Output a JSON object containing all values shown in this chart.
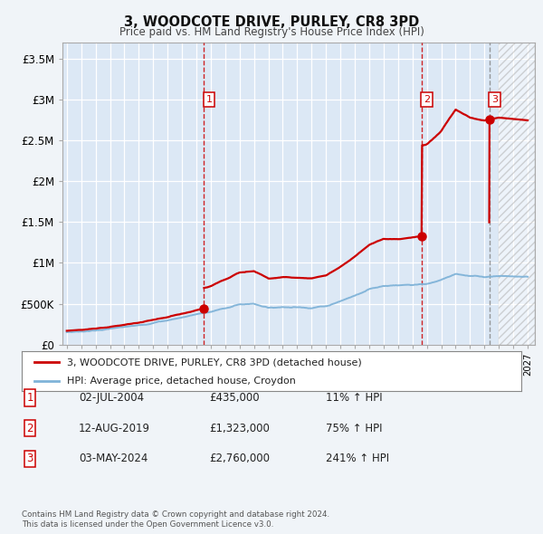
{
  "title": "3, WOODCOTE DRIVE, PURLEY, CR8 3PD",
  "subtitle": "Price paid vs. HM Land Registry's House Price Index (HPI)",
  "background_color": "#f0f4f8",
  "plot_bg_color": "#dce8f5",
  "grid_color": "#ffffff",
  "hpi_line_color": "#7fb3d8",
  "price_line_color": "#cc0000",
  "vline_color": "#cc0000",
  "vline3_color": "#888888",
  "yticks": [
    0,
    500000,
    1000000,
    1500000,
    2000000,
    2500000,
    3000000,
    3500000
  ],
  "ytick_labels": [
    "£0",
    "£500K",
    "£1M",
    "£1.5M",
    "£2M",
    "£2.5M",
    "£3M",
    "£3.5M"
  ],
  "xlim_start": 1994.7,
  "xlim_end": 2027.5,
  "ylim_max": 3700000,
  "sales": [
    {
      "year": 2004.5,
      "price": 435000,
      "label": "1",
      "vline_style": "red_dash"
    },
    {
      "year": 2019.62,
      "price": 1323000,
      "label": "2",
      "vline_style": "red_dash"
    },
    {
      "year": 2024.35,
      "price": 2760000,
      "label": "3",
      "vline_style": "gray_dash"
    }
  ],
  "legend_entries": [
    "3, WOODCOTE DRIVE, PURLEY, CR8 3PD (detached house)",
    "HPI: Average price, detached house, Croydon"
  ],
  "table_rows": [
    {
      "num": "1",
      "date": "02-JUL-2004",
      "price": "£435,000",
      "pct": "11% ↑ HPI"
    },
    {
      "num": "2",
      "date": "12-AUG-2019",
      "price": "£1,323,000",
      "pct": "75% ↑ HPI"
    },
    {
      "num": "3",
      "date": "03-MAY-2024",
      "price": "£2,760,000",
      "pct": "241% ↑ HPI"
    }
  ],
  "footnote1": "Contains HM Land Registry data © Crown copyright and database right 2024.",
  "footnote2": "This data is licensed under the Open Government Licence v3.0."
}
